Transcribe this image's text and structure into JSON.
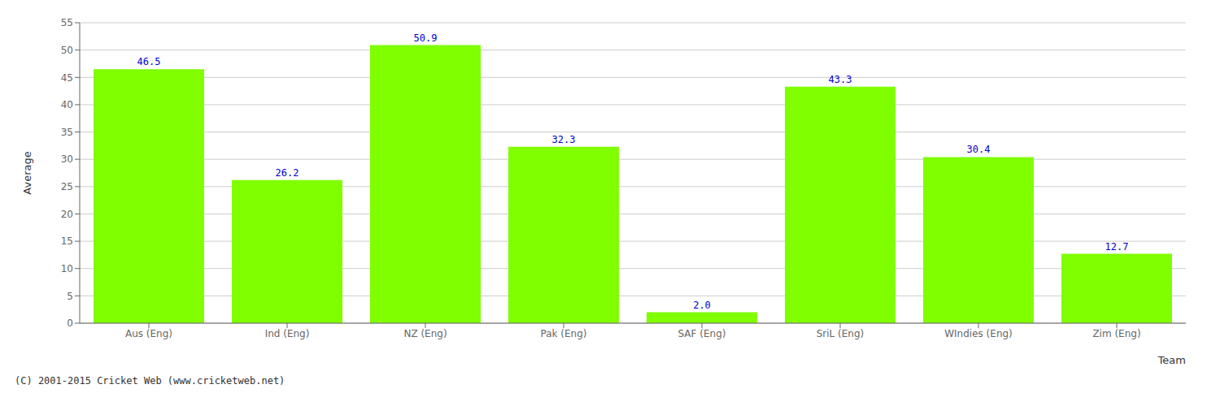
{
  "chart_data": {
    "type": "bar",
    "categories": [
      "Aus (Eng)",
      "Ind (Eng)",
      "NZ (Eng)",
      "Pak (Eng)",
      "SAF (Eng)",
      "SriL (Eng)",
      "WIndies (Eng)",
      "Zim (Eng)"
    ],
    "values": [
      46.5,
      26.2,
      50.9,
      32.3,
      2.0,
      43.3,
      30.4,
      12.7
    ],
    "value_labels": [
      "46.5",
      "26.2",
      "50.9",
      "32.3",
      "2.0",
      "43.3",
      "30.4",
      "12.7"
    ],
    "data_labels": true,
    "color": "#7fff00",
    "xlabel": "Team",
    "ylabel": "Average",
    "ylim": [
      0,
      55
    ],
    "yticks": [
      0,
      5,
      10,
      15,
      20,
      25,
      30,
      35,
      40,
      45,
      50,
      55
    ],
    "grid": true,
    "annotations": [
      "(C) 2001-2015 Cricket Web (www.cricketweb.net)"
    ]
  }
}
